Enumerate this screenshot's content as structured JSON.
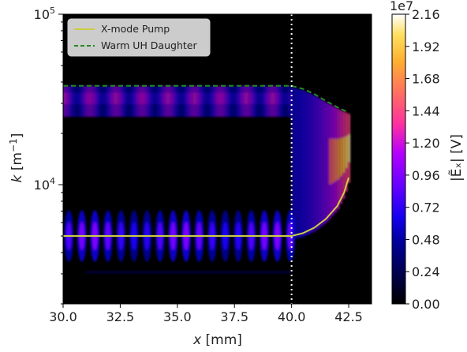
{
  "chart_data": {
    "type": "heatmap",
    "colormap": "gnuplot2",
    "xlabel": "x [mm]",
    "ylabel": "k [m⁻¹]",
    "x_ticks": [
      "30.0",
      "32.5",
      "35.0",
      "37.5",
      "40.0",
      "42.5"
    ],
    "x_tick_values": [
      30.0,
      32.5,
      35.0,
      37.5,
      40.0,
      42.5
    ],
    "xlim": [
      30.0,
      43.5
    ],
    "yscale": "log",
    "ylim": [
      2000,
      100000
    ],
    "y_ticks": [
      "10⁴",
      "10⁵"
    ],
    "y_tick_values": [
      10000,
      100000
    ],
    "grid": false,
    "vline": {
      "x": 40.0,
      "style": "dotted",
      "color": "#ffffff"
    },
    "colorbar": {
      "label": "|Ẽₓ| [V]",
      "multiplier": "1e7",
      "range": [
        0.0,
        2.16
      ],
      "ticks": [
        "0.00",
        "0.24",
        "0.48",
        "0.72",
        "0.96",
        "1.20",
        "1.44",
        "1.68",
        "1.92",
        "2.16"
      ]
    },
    "legend": {
      "placement": "upper-left",
      "entries": [
        {
          "label": "X-mode Pump",
          "color": "#cccc44",
          "style": "solid"
        },
        {
          "label": "Warm UH Daughter",
          "color": "#228b22",
          "style": "dashed"
        }
      ]
    },
    "series": [
      {
        "name": "X-mode Pump",
        "x": [
          30.0,
          32.0,
          34.0,
          36.0,
          38.0,
          40.0,
          40.5,
          41.0,
          41.5,
          42.0,
          42.3,
          42.5
        ],
        "y": [
          5000,
          5000,
          5000,
          5000,
          5000,
          5000,
          5200,
          5600,
          6300,
          7500,
          9000,
          11000
        ]
      },
      {
        "name": "Warm UH Daughter",
        "x": [
          30.0,
          32.0,
          34.0,
          36.0,
          38.0,
          40.0,
          40.5,
          41.0,
          41.5,
          42.0,
          42.5
        ],
        "y": [
          38000,
          38000,
          38000,
          38000,
          38000,
          38000,
          36500,
          34000,
          31000,
          28500,
          26500
        ]
      }
    ],
    "field_features": [
      {
        "band": "upper",
        "x_range": [
          30.0,
          40.0
        ],
        "k_center": 33000,
        "k_spread": [
          25000,
          38000
        ],
        "peak": 1.2
      },
      {
        "band": "lower",
        "x_range": [
          30.0,
          40.0
        ],
        "k_center": 5000,
        "k_spread": [
          3500,
          7000
        ],
        "peak": 0.95
      },
      {
        "band": "arc",
        "x_range": [
          40.0,
          42.6
        ],
        "peak": 2.16
      }
    ]
  }
}
